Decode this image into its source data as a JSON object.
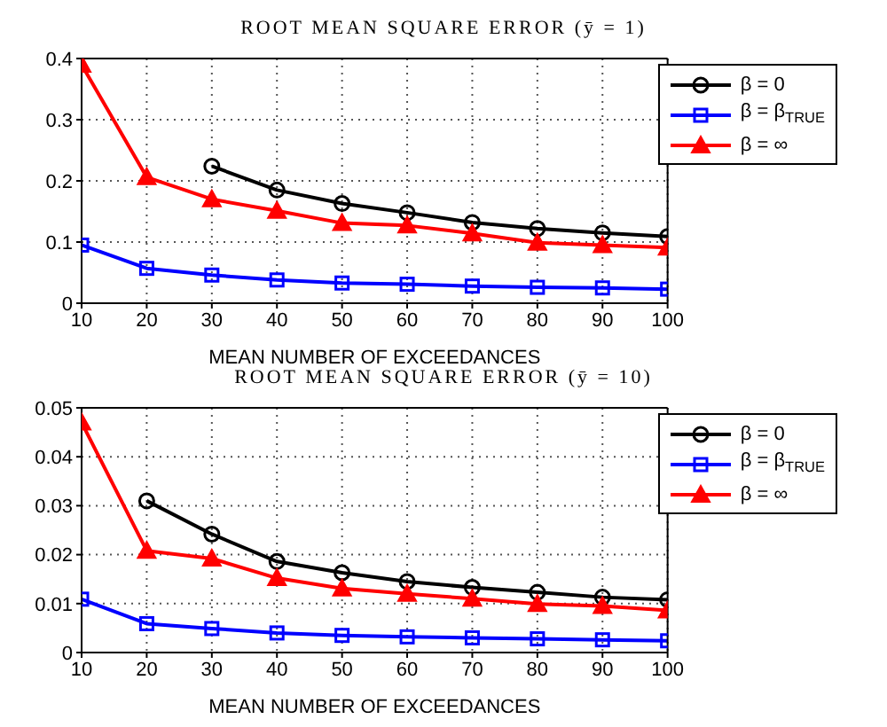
{
  "chart_data": [
    {
      "type": "line",
      "title": "ROOT MEAN SQUARE ERROR (ȳ = 1)",
      "xlabel": "MEAN NUMBER OF EXCEEDANCES",
      "x": [
        10,
        20,
        30,
        40,
        50,
        60,
        70,
        80,
        90,
        100
      ],
      "xlim": [
        10,
        100
      ],
      "xticks": [
        10,
        20,
        30,
        40,
        50,
        60,
        70,
        80,
        90,
        100
      ],
      "ylim": [
        0,
        0.4
      ],
      "yticks": [
        0,
        0.1,
        0.2,
        0.3,
        0.4
      ],
      "grid": true,
      "legend": "top right",
      "series": [
        {
          "name": "β = 0",
          "color": "#000000",
          "marker": "circle",
          "values": [
            null,
            null,
            0.224,
            0.185,
            0.163,
            0.148,
            0.132,
            0.122,
            0.115,
            0.109
          ]
        },
        {
          "name": "β = β$_{TRUE}$",
          "color": "#0000ff",
          "marker": "square",
          "values": [
            0.095,
            0.057,
            0.046,
            0.038,
            0.033,
            0.031,
            0.028,
            0.026,
            0.025,
            0.023
          ]
        },
        {
          "name": "β = ∞",
          "color": "#ff0000",
          "marker": "triangle",
          "values": [
            0.39,
            0.206,
            0.17,
            0.151,
            0.131,
            0.127,
            0.114,
            0.099,
            0.095,
            0.091
          ]
        }
      ]
    },
    {
      "type": "line",
      "title": "ROOT MEAN SQUARE ERROR (ȳ = 10)",
      "xlabel": "MEAN NUMBER OF EXCEEDANCES",
      "x": [
        10,
        20,
        30,
        40,
        50,
        60,
        70,
        80,
        90,
        100
      ],
      "xlim": [
        10,
        100
      ],
      "xticks": [
        10,
        20,
        30,
        40,
        50,
        60,
        70,
        80,
        90,
        100
      ],
      "ylim": [
        0,
        0.05
      ],
      "yticks": [
        0,
        0.01,
        0.02,
        0.03,
        0.04,
        0.05
      ],
      "grid": true,
      "legend": "top right",
      "series": [
        {
          "name": "β = 0",
          "color": "#000000",
          "marker": "circle",
          "values": [
            null,
            0.031,
            0.0242,
            0.0186,
            0.0163,
            0.0145,
            0.0133,
            0.0123,
            0.0113,
            0.0108
          ]
        },
        {
          "name": "β = β$_{TRUE}$",
          "color": "#0000ff",
          "marker": "square",
          "values": [
            0.0109,
            0.0059,
            0.0049,
            0.004,
            0.0035,
            0.0032,
            0.003,
            0.0028,
            0.0026,
            0.0024
          ]
        },
        {
          "name": "β = ∞",
          "color": "#ff0000",
          "marker": "triangle",
          "values": [
            0.047,
            0.0208,
            0.0192,
            0.0152,
            0.0131,
            0.012,
            0.011,
            0.0099,
            0.0095,
            0.0086
          ]
        }
      ]
    }
  ]
}
